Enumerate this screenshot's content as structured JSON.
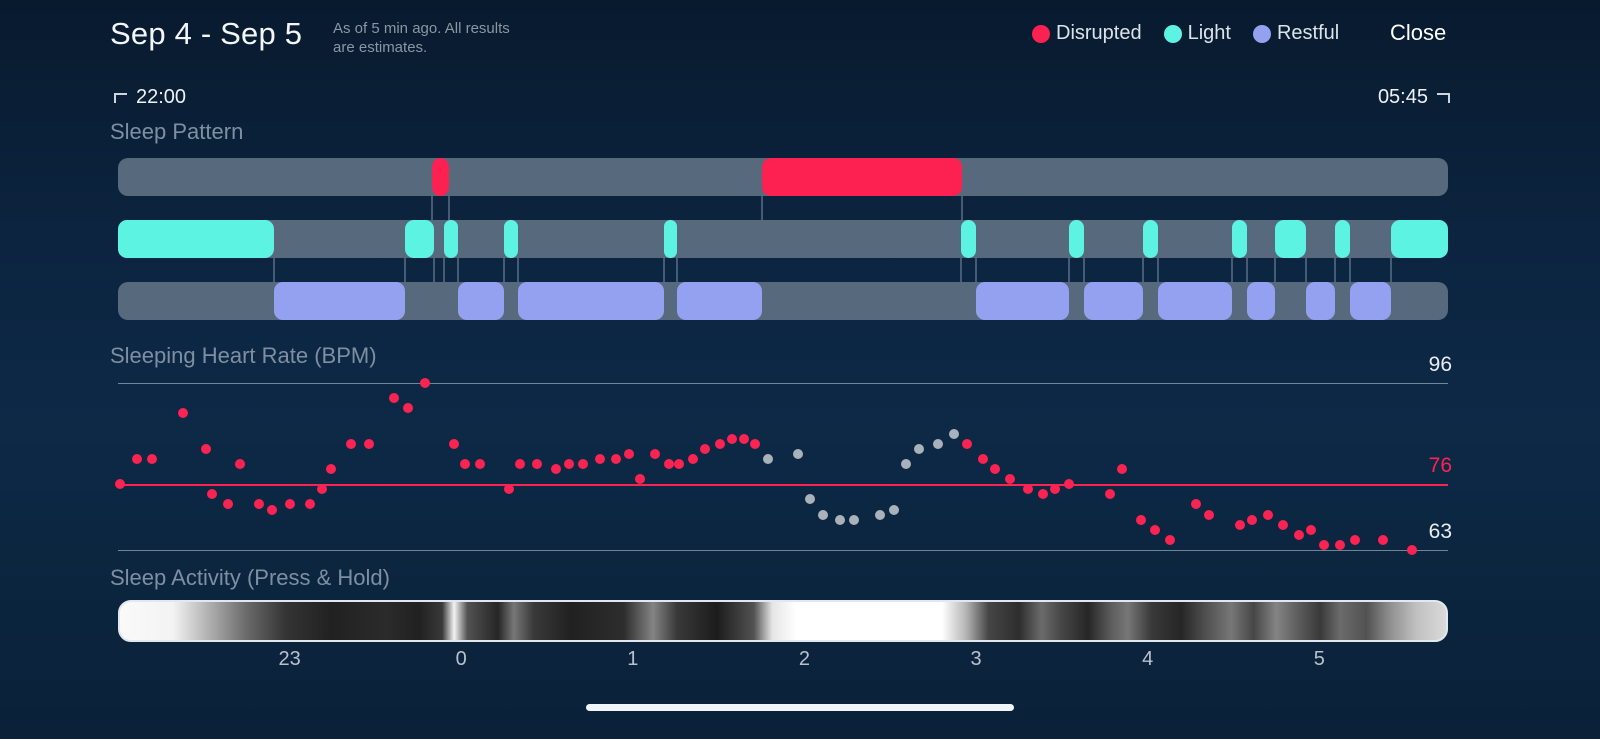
{
  "header": {
    "title": "Sep 4 - Sep 5",
    "subtitle_line1": "As of 5 min ago. All results",
    "subtitle_line2": "are estimates.",
    "close_label": "Close",
    "legend": [
      {
        "label": "Disrupted",
        "color": "#fc2150"
      },
      {
        "label": "Light",
        "color": "#5df3e3"
      },
      {
        "label": "Restful",
        "color": "#94a1f1"
      }
    ]
  },
  "time_range": {
    "start": "22:00",
    "end": "05:45"
  },
  "sections": {
    "sleep_pattern": "Sleep Pattern",
    "heart_rate": "Sleeping Heart Rate (BPM)",
    "activity": "Sleep Activity (Press & Hold)"
  },
  "icons": {
    "range_start_marker": "crop-corner-left",
    "range_end_marker": "crop-corner-right",
    "legend_dots": "colored-circle"
  },
  "chart_data": [
    {
      "type": "timeline",
      "title": "Sleep Pattern",
      "start_time": "22:00",
      "end_time": "05:45",
      "x_range_hours": [
        0,
        7.75
      ],
      "track_background_color": "#56697d",
      "tracks": [
        {
          "name": "Disrupted",
          "color": "#fc2150",
          "segments": [
            [
              1.83,
              1.93
            ],
            [
              3.75,
              4.92
            ]
          ]
        },
        {
          "name": "Light",
          "color": "#5df3e3",
          "segments": [
            [
              0,
              0.91
            ],
            [
              1.67,
              1.84
            ],
            [
              1.9,
              1.98
            ],
            [
              2.25,
              2.33
            ],
            [
              3.18,
              3.26
            ],
            [
              4.91,
              5.0
            ],
            [
              5.54,
              5.63
            ],
            [
              5.97,
              6.06
            ],
            [
              6.49,
              6.58
            ],
            [
              6.74,
              6.92
            ],
            [
              7.09,
              7.18
            ],
            [
              7.42,
              7.75
            ]
          ]
        },
        {
          "name": "Restful",
          "color": "#94a1f1",
          "segments": [
            [
              0.91,
              1.67
            ],
            [
              1.98,
              2.25
            ],
            [
              2.33,
              3.18
            ],
            [
              3.26,
              3.75
            ],
            [
              5.0,
              5.54
            ],
            [
              5.63,
              5.97
            ],
            [
              6.06,
              6.49
            ],
            [
              6.58,
              6.74
            ],
            [
              6.92,
              7.09
            ],
            [
              7.18,
              7.42
            ]
          ]
        }
      ]
    },
    {
      "type": "scatter",
      "title": "Sleeping Heart Rate (BPM)",
      "x_unit": "hours after 22:00",
      "ylim": [
        63,
        96
      ],
      "gridlines": [
        {
          "bpm": 96
        },
        {
          "bpm": 76,
          "accent": true
        },
        {
          "bpm": 63
        }
      ],
      "colors": {
        "normal": "#fb2352",
        "during_disruption": "#a9b2ba"
      },
      "points": [
        [
          0.01,
          76,
          "p"
        ],
        [
          0.11,
          81,
          "p"
        ],
        [
          0.2,
          81,
          "p"
        ],
        [
          0.38,
          90,
          "p"
        ],
        [
          0.51,
          83,
          "p"
        ],
        [
          0.55,
          74,
          "p"
        ],
        [
          0.64,
          72,
          "p"
        ],
        [
          0.71,
          80,
          "p"
        ],
        [
          0.82,
          72,
          "p"
        ],
        [
          0.9,
          71,
          "p"
        ],
        [
          1.0,
          72,
          "p"
        ],
        [
          1.12,
          72,
          "p"
        ],
        [
          1.19,
          75,
          "p"
        ],
        [
          1.24,
          79,
          "p"
        ],
        [
          1.36,
          84,
          "p"
        ],
        [
          1.46,
          84,
          "p"
        ],
        [
          1.61,
          93,
          "p"
        ],
        [
          1.69,
          91,
          "p"
        ],
        [
          1.79,
          96,
          "p"
        ],
        [
          1.96,
          84,
          "p"
        ],
        [
          2.02,
          80,
          "p"
        ],
        [
          2.11,
          80,
          "p"
        ],
        [
          2.28,
          75,
          "p"
        ],
        [
          2.34,
          80,
          "p"
        ],
        [
          2.44,
          80,
          "p"
        ],
        [
          2.55,
          79,
          "p"
        ],
        [
          2.63,
          80,
          "p"
        ],
        [
          2.71,
          80,
          "p"
        ],
        [
          2.81,
          81,
          "p"
        ],
        [
          2.9,
          81,
          "p"
        ],
        [
          2.98,
          82,
          "p"
        ],
        [
          3.04,
          77,
          "p"
        ],
        [
          3.13,
          82,
          "p"
        ],
        [
          3.21,
          80,
          "p"
        ],
        [
          3.27,
          80,
          "p"
        ],
        [
          3.35,
          81,
          "p"
        ],
        [
          3.42,
          83,
          "p"
        ],
        [
          3.51,
          84,
          "p"
        ],
        [
          3.58,
          85,
          "p"
        ],
        [
          3.65,
          85,
          "p"
        ],
        [
          3.71,
          84,
          "p"
        ],
        [
          3.79,
          81,
          "g"
        ],
        [
          3.96,
          82,
          "g"
        ],
        [
          4.03,
          73,
          "g"
        ],
        [
          4.11,
          70,
          "g"
        ],
        [
          4.21,
          69,
          "g"
        ],
        [
          4.29,
          69,
          "g"
        ],
        [
          4.44,
          70,
          "g"
        ],
        [
          4.52,
          71,
          "g"
        ],
        [
          4.59,
          80,
          "g"
        ],
        [
          4.67,
          83,
          "g"
        ],
        [
          4.78,
          84,
          "g"
        ],
        [
          4.87,
          86,
          "g"
        ],
        [
          4.95,
          84,
          "p"
        ],
        [
          5.04,
          81,
          "p"
        ],
        [
          5.11,
          79,
          "p"
        ],
        [
          5.2,
          77,
          "p"
        ],
        [
          5.3,
          75,
          "p"
        ],
        [
          5.39,
          74,
          "p"
        ],
        [
          5.46,
          75,
          "p"
        ],
        [
          5.54,
          76,
          "p"
        ],
        [
          5.78,
          74,
          "p"
        ],
        [
          5.85,
          79,
          "p"
        ],
        [
          5.96,
          69,
          "p"
        ],
        [
          6.04,
          67,
          "p"
        ],
        [
          6.13,
          65,
          "p"
        ],
        [
          6.28,
          72,
          "p"
        ],
        [
          6.36,
          70,
          "p"
        ],
        [
          6.54,
          68,
          "p"
        ],
        [
          6.61,
          69,
          "p"
        ],
        [
          6.7,
          70,
          "p"
        ],
        [
          6.79,
          68,
          "p"
        ],
        [
          6.88,
          66,
          "p"
        ],
        [
          6.95,
          67,
          "p"
        ],
        [
          7.03,
          64,
          "p"
        ],
        [
          7.12,
          64,
          "p"
        ],
        [
          7.21,
          65,
          "p"
        ],
        [
          7.37,
          65,
          "p"
        ],
        [
          7.54,
          63,
          "p"
        ]
      ]
    },
    {
      "type": "heatmap",
      "title": "Sleep Activity (Press & Hold)",
      "x_ticks": {
        "labels": [
          "23",
          "0",
          "1",
          "2",
          "3",
          "4",
          "5"
        ],
        "hours": [
          1,
          2,
          3,
          4,
          5,
          6,
          7
        ]
      },
      "gradient_stops": [
        [
          0,
          0.98
        ],
        [
          0.04,
          0.95
        ],
        [
          0.065,
          0.7
        ],
        [
          0.095,
          0.4
        ],
        [
          0.125,
          0.18
        ],
        [
          0.16,
          0.1
        ],
        [
          0.2,
          0.14
        ],
        [
          0.225,
          0.1
        ],
        [
          0.243,
          0.2
        ],
        [
          0.252,
          0.95
        ],
        [
          0.262,
          0.3
        ],
        [
          0.285,
          0.12
        ],
        [
          0.297,
          0.45
        ],
        [
          0.312,
          0.2
        ],
        [
          0.34,
          0.1
        ],
        [
          0.38,
          0.15
        ],
        [
          0.402,
          0.5
        ],
        [
          0.42,
          0.2
        ],
        [
          0.45,
          0.08
        ],
        [
          0.478,
          0.3
        ],
        [
          0.492,
          0.9
        ],
        [
          0.51,
          1
        ],
        [
          0.62,
          1
        ],
        [
          0.638,
          0.7
        ],
        [
          0.655,
          0.25
        ],
        [
          0.678,
          0.15
        ],
        [
          0.695,
          0.4
        ],
        [
          0.71,
          0.25
        ],
        [
          0.73,
          0.12
        ],
        [
          0.748,
          0.35
        ],
        [
          0.76,
          0.45
        ],
        [
          0.778,
          0.2
        ],
        [
          0.8,
          0.12
        ],
        [
          0.82,
          0.3
        ],
        [
          0.838,
          0.45
        ],
        [
          0.855,
          0.25
        ],
        [
          0.872,
          0.5
        ],
        [
          0.888,
          0.35
        ],
        [
          0.905,
          0.2
        ],
        [
          0.92,
          0.4
        ],
        [
          0.94,
          0.3
        ],
        [
          0.958,
          0.55
        ],
        [
          0.978,
          0.75
        ],
        [
          1,
          0.85
        ]
      ]
    }
  ]
}
